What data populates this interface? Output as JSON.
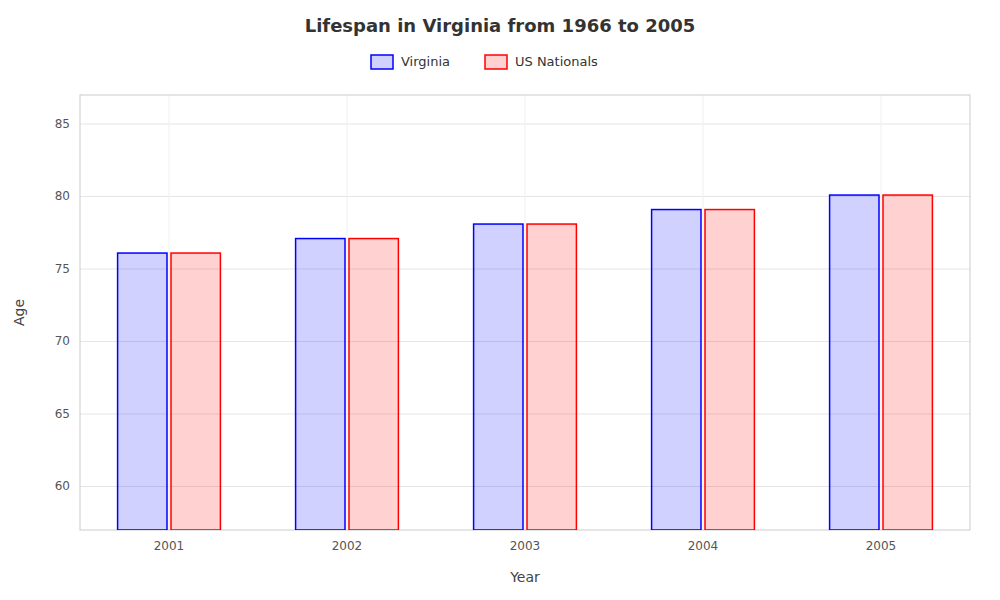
{
  "chart_data": {
    "type": "bar",
    "title": "Lifespan in Virginia from 1966 to 2005",
    "xlabel": "Year",
    "ylabel": "Age",
    "categories": [
      "2001",
      "2002",
      "2003",
      "2004",
      "2005"
    ],
    "series": [
      {
        "name": "Virginia",
        "color": "#0000ff",
        "values": [
          76.1,
          77.1,
          78.1,
          79.1,
          80.1
        ]
      },
      {
        "name": "US Nationals",
        "color": "#ff0000",
        "values": [
          76.1,
          77.1,
          78.1,
          79.1,
          80.1
        ]
      }
    ],
    "ylim": [
      57,
      87
    ],
    "yticks": [
      60,
      65,
      70,
      75,
      80,
      85
    ],
    "grid": true,
    "legend": "top"
  }
}
